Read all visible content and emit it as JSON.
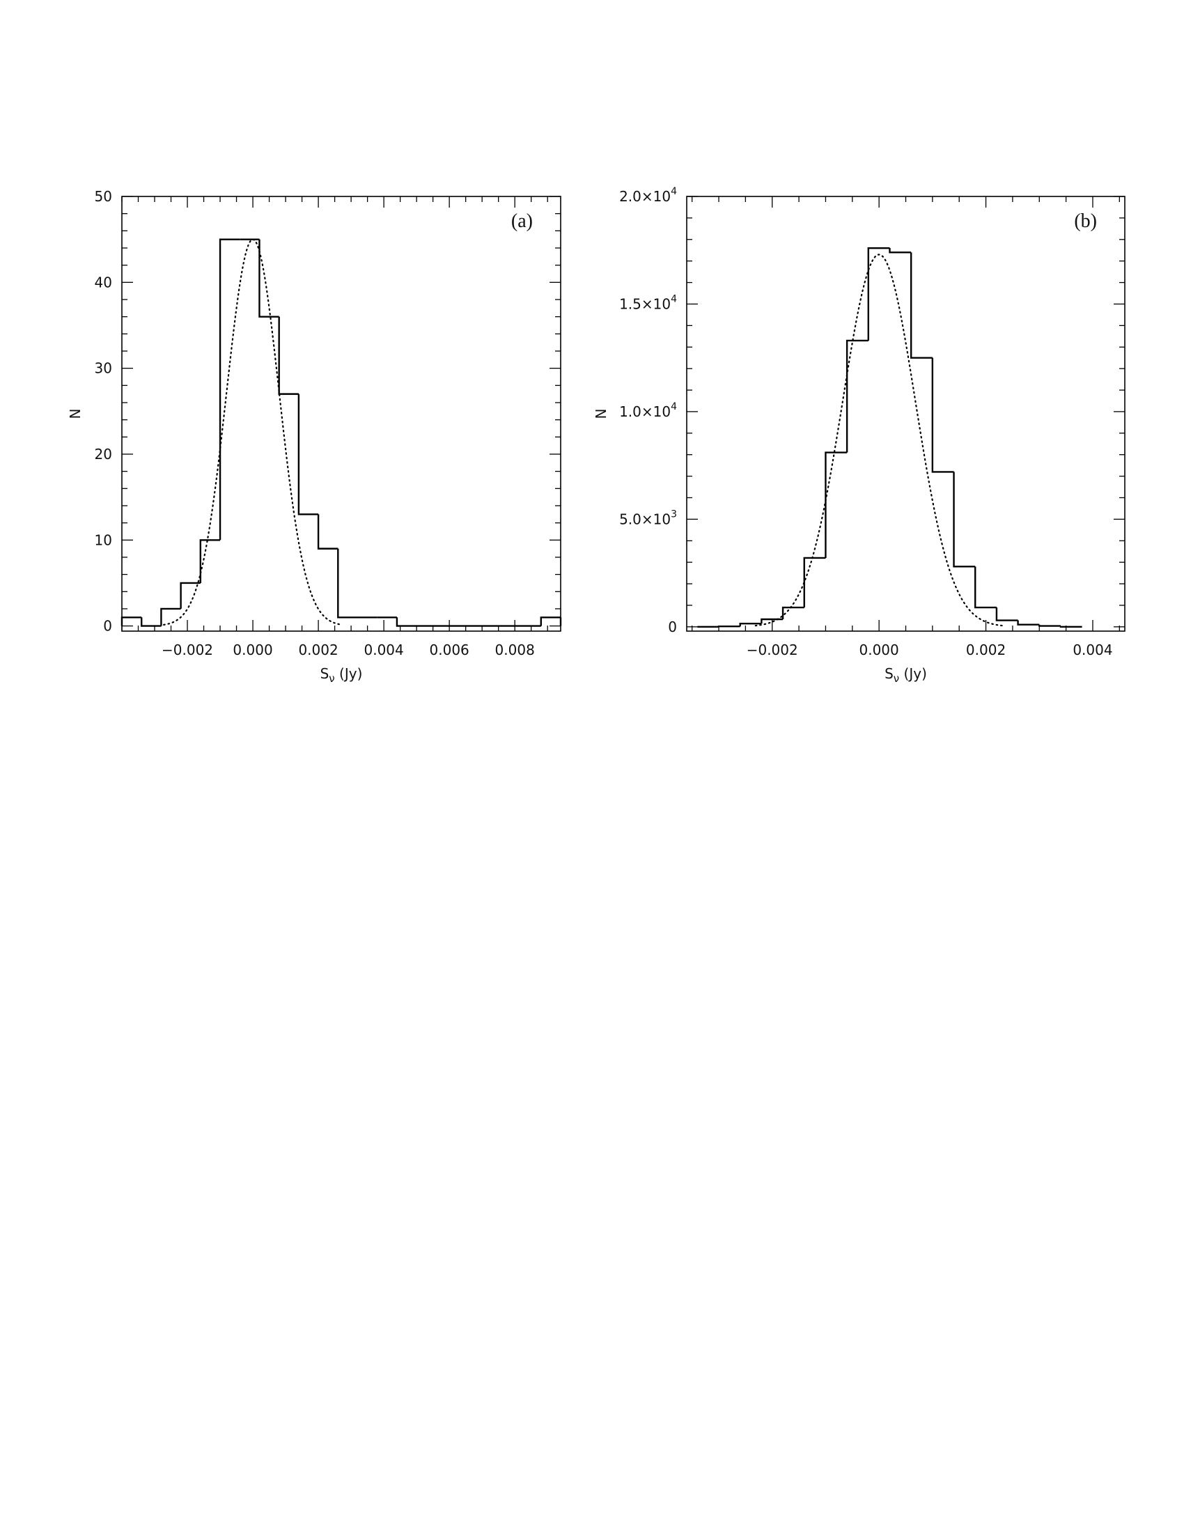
{
  "chart_data": [
    {
      "type": "histogram",
      "panel_label": "(a)",
      "xlabel_main": "S",
      "xlabel_sub": "ν",
      "xlabel_unit": " (Jy)",
      "ylabel": "N",
      "xlim": [
        -0.004,
        0.0094
      ],
      "ylim": [
        -0.6,
        50
      ],
      "xticks": [
        {
          "value": -0.002,
          "label": "−0.002"
        },
        {
          "value": 0.0,
          "label": "0.000"
        },
        {
          "value": 0.002,
          "label": "0.002"
        },
        {
          "value": 0.004,
          "label": "0.004"
        },
        {
          "value": 0.006,
          "label": "0.006"
        },
        {
          "value": 0.008,
          "label": "0.008"
        }
      ],
      "yticks": [
        {
          "value": 0,
          "label": "0"
        },
        {
          "value": 10,
          "label": "10"
        },
        {
          "value": 20,
          "label": "20"
        },
        {
          "value": 30,
          "label": "30"
        },
        {
          "value": 40,
          "label": "40"
        },
        {
          "value": 50,
          "label": "50"
        }
      ],
      "x_minor": 0.0005,
      "y_minor": 2,
      "bin_width": 0.0006,
      "bins": [
        {
          "left": -0.004,
          "right": -0.0034,
          "count": 1
        },
        {
          "left": -0.0034,
          "right": -0.0028,
          "count": 0
        },
        {
          "left": -0.0028,
          "right": -0.0022,
          "count": 2
        },
        {
          "left": -0.0022,
          "right": -0.0016,
          "count": 5
        },
        {
          "left": -0.0016,
          "right": -0.001,
          "count": 10
        },
        {
          "left": -0.001,
          "right": -0.0004,
          "count": 45
        },
        {
          "left": -0.0004,
          "right": 0.0002,
          "count": 45
        },
        {
          "left": 0.0002,
          "right": 0.0008,
          "count": 36
        },
        {
          "left": 0.0008,
          "right": 0.0014,
          "count": 27
        },
        {
          "left": 0.0014,
          "right": 0.002,
          "count": 13
        },
        {
          "left": 0.002,
          "right": 0.0026,
          "count": 9
        },
        {
          "left": 0.0026,
          "right": 0.0032,
          "count": 1
        },
        {
          "left": 0.0032,
          "right": 0.0038,
          "count": 1
        },
        {
          "left": 0.0038,
          "right": 0.0044,
          "count": 1
        },
        {
          "left": 0.0044,
          "right": 0.0088,
          "count": 0
        },
        {
          "left": 0.0088,
          "right": 0.0094,
          "count": 1
        }
      ],
      "gaussian_fit": {
        "amplitude": 45,
        "mean": 0.0,
        "sigma": 0.0008
      }
    },
    {
      "type": "histogram",
      "panel_label": "(b)",
      "xlabel_main": "S",
      "xlabel_sub": "ν",
      "xlabel_unit": " (Jy)",
      "ylabel": "N",
      "xlim": [
        -0.0036,
        0.0046
      ],
      "ylim": [
        -200,
        20000
      ],
      "xticks": [
        {
          "value": -0.002,
          "label": "−0.002"
        },
        {
          "value": 0.0,
          "label": "0.000"
        },
        {
          "value": 0.002,
          "label": "0.002"
        },
        {
          "value": 0.004,
          "label": "0.004"
        }
      ],
      "yticks": [
        {
          "value": 0,
          "label": "0"
        },
        {
          "value": 5000,
          "label": "5.0×10",
          "exp": "3"
        },
        {
          "value": 10000,
          "label": "1.0×10",
          "exp": "4"
        },
        {
          "value": 15000,
          "label": "1.5×10",
          "exp": "4"
        },
        {
          "value": 20000,
          "label": "2.0×10",
          "exp": "4"
        }
      ],
      "x_minor": 0.0005,
      "y_minor": 1000,
      "bin_width": 0.0004,
      "bins": [
        {
          "left": -0.0034,
          "right": -0.003,
          "count": 0
        },
        {
          "left": -0.003,
          "right": -0.0026,
          "count": 20
        },
        {
          "left": -0.0026,
          "right": -0.0022,
          "count": 150
        },
        {
          "left": -0.0022,
          "right": -0.0018,
          "count": 350
        },
        {
          "left": -0.0018,
          "right": -0.0014,
          "count": 900
        },
        {
          "left": -0.0014,
          "right": -0.001,
          "count": 3200
        },
        {
          "left": -0.001,
          "right": -0.0006,
          "count": 8100
        },
        {
          "left": -0.0006,
          "right": -0.0002,
          "count": 13300
        },
        {
          "left": -0.0002,
          "right": 0.0002,
          "count": 17600
        },
        {
          "left": 0.0002,
          "right": 0.0006,
          "count": 17400
        },
        {
          "left": 0.0006,
          "right": 0.001,
          "count": 12500
        },
        {
          "left": 0.001,
          "right": 0.0014,
          "count": 7200
        },
        {
          "left": 0.0014,
          "right": 0.0018,
          "count": 2800
        },
        {
          "left": 0.0018,
          "right": 0.0022,
          "count": 900
        },
        {
          "left": 0.0022,
          "right": 0.0026,
          "count": 300
        },
        {
          "left": 0.0026,
          "right": 0.003,
          "count": 100
        },
        {
          "left": 0.003,
          "right": 0.0034,
          "count": 40
        },
        {
          "left": 0.0034,
          "right": 0.0038,
          "count": 0
        }
      ],
      "gaussian_fit": {
        "amplitude": 17300,
        "mean": 0.0,
        "sigma": 0.00068
      }
    }
  ]
}
